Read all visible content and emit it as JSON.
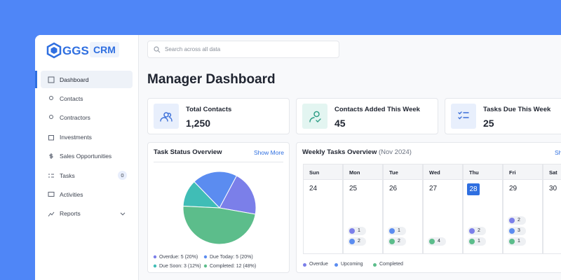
{
  "brand": {
    "name": "GGS",
    "badge": "CRM"
  },
  "search": {
    "placeholder": "Search across all data"
  },
  "nav": [
    {
      "label": "Dashboard",
      "active": true
    },
    {
      "label": "Contacts"
    },
    {
      "label": "Contractors"
    },
    {
      "label": "Investments"
    },
    {
      "label": "Sales Opportunities"
    },
    {
      "label": "Tasks",
      "badge": 0
    },
    {
      "label": "Activities"
    },
    {
      "label": "Reports",
      "expandable": true
    }
  ],
  "page_title": "Manager Dashboard",
  "stats": [
    {
      "label": "Total Contacts",
      "value": "1,250",
      "icon_bg": "#e8effc",
      "icon_color": "#3b6fd8"
    },
    {
      "label": "Contacts Added This Week",
      "value": 45,
      "icon_bg": "#e3f5f1",
      "icon_color": "#2f9e86"
    },
    {
      "label": "Tasks Due This Week",
      "value": 25,
      "icon_bg": "#e8effc",
      "icon_color": "#3b6fd8"
    }
  ],
  "chart_data": {
    "type": "pie",
    "title": "Task Status Overview",
    "action": "Show More",
    "values": [
      5,
      5,
      3,
      12
    ],
    "value_labels": [
      "Overdue: 5 (20%)",
      "Due Today: 5 (20%)",
      "Due Soon: 3 (12%)",
      "Completed: 12 (48%)"
    ],
    "colors": [
      "#7b7fe9",
      "#5b8cf0",
      "#40bdb6",
      "#5cbd8b"
    ]
  },
  "calendar": {
    "title": "Weekly Tasks Overview",
    "subtitle": "(Nov 2024)",
    "action": "Show More",
    "legend": [
      {
        "name": "Overdue",
        "color": "#7b7fe9"
      },
      {
        "name": "Upcoming",
        "color": "#5b8cf0"
      },
      {
        "name": "Completed",
        "color": "#5cbd8b"
      }
    ],
    "days": [
      {
        "name": "Sun",
        "date": 24,
        "events": []
      },
      {
        "name": "Mon",
        "date": 25,
        "events": [
          {
            "kind": 0,
            "count": 1
          },
          {
            "kind": 1,
            "count": 2
          }
        ]
      },
      {
        "name": "Tue",
        "date": 26,
        "events": [
          {
            "kind": 1,
            "count": 1
          },
          {
            "kind": 2,
            "count": 2
          }
        ]
      },
      {
        "name": "Wed",
        "date": 27,
        "events": [
          {
            "kind": 2,
            "count": 4
          }
        ]
      },
      {
        "name": "Thu",
        "date": 28,
        "today": true,
        "events": [
          {
            "kind": 0,
            "count": 2
          },
          {
            "kind": 2,
            "count": 1
          }
        ]
      },
      {
        "name": "Fri",
        "date": 29,
        "events": [
          {
            "kind": 0,
            "count": 2
          },
          {
            "kind": 1,
            "count": 3
          },
          {
            "kind": 2,
            "count": 1
          }
        ]
      },
      {
        "name": "Sat",
        "date": 30,
        "events": []
      }
    ]
  }
}
